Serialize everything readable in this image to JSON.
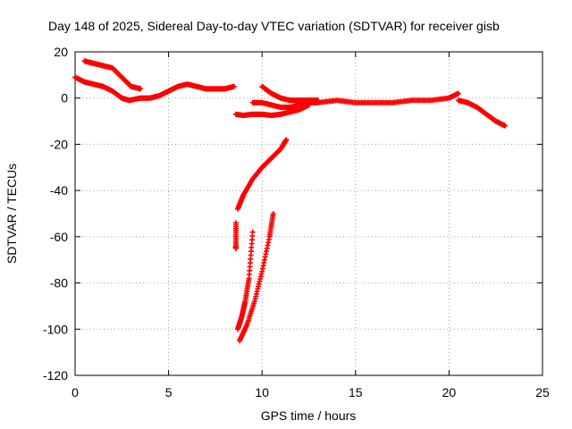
{
  "chart_data": {
    "type": "scatter",
    "title": "Day 148 of 2025, Sidereal Day-to-day VTEC variation (SDTVAR) for receiver gisb",
    "xlabel": "GPS time / hours",
    "ylabel": "SDTVAR / TECUs",
    "xlim": [
      0,
      25
    ],
    "ylim": [
      -120,
      20
    ],
    "xticks": [
      0,
      5,
      10,
      15,
      20,
      25
    ],
    "yticks": [
      -120,
      -100,
      -80,
      -60,
      -40,
      -20,
      0,
      20
    ],
    "grid": true,
    "marker": "+",
    "color": "#ff0000",
    "series": [
      {
        "segments": [
          {
            "x": [
              0.0,
              0.5,
              1.0,
              1.5,
              2.0,
              2.5,
              2.9
            ],
            "y": [
              9,
              7,
              6,
              5,
              3,
              0,
              -1
            ]
          },
          {
            "x": [
              0.5,
              1.0,
              1.5,
              2.0,
              2.5,
              3.0,
              3.5
            ],
            "y": [
              16,
              15,
              14,
              13,
              9,
              5,
              4
            ]
          },
          {
            "x": [
              2.9,
              3.5,
              4.0,
              4.5,
              5.0,
              5.5,
              6.0,
              6.5,
              7.0,
              7.5,
              8.0,
              8.5
            ],
            "y": [
              -1,
              0,
              0,
              1,
              3,
              5,
              6,
              5,
              4,
              4,
              4,
              5
            ]
          },
          {
            "x": [
              8.6,
              9.0,
              9.5,
              10.0,
              10.5,
              11.0,
              11.5,
              12.0,
              12.5
            ],
            "y": [
              -7,
              -7.5,
              -7,
              -7,
              -7.5,
              -7,
              -6,
              -5,
              -3
            ]
          },
          {
            "x": [
              9.5,
              10.0,
              10.5,
              11.0,
              11.5,
              12.0,
              12.5
            ],
            "y": [
              -2,
              -2,
              -3,
              -4,
              -4,
              -3,
              -2
            ]
          },
          {
            "x": [
              10.0,
              10.5,
              11.0,
              11.5,
              12.0,
              12.5,
              13.0
            ],
            "y": [
              5,
              2,
              0,
              -1,
              -1,
              -1,
              -1
            ]
          },
          {
            "x": [
              12.5,
              13,
              14,
              15,
              16,
              17,
              18,
              19,
              20,
              20.5
            ],
            "y": [
              -2,
              -2,
              -1,
              -2,
              -2,
              -2,
              -1,
              -1,
              0,
              2
            ]
          },
          {
            "x": [
              20.5,
              21,
              21.5,
              22,
              22.5,
              23
            ],
            "y": [
              -1,
              -2,
              -4,
              -7,
              -10,
              -12
            ]
          },
          {
            "x": [
              8.7,
              9.0,
              9.5,
              10.0,
              10.5,
              11.0,
              11.3
            ],
            "y": [
              -48,
              -42,
              -35,
              -30,
              -26,
              -22,
              -18
            ]
          },
          {
            "x": [
              8.7,
              8.9,
              9.1,
              9.3,
              9.5
            ],
            "y": [
              -100,
              -95,
              -88,
              -78,
              -58
            ]
          },
          {
            "x": [
              8.8,
              9.2,
              9.6,
              10.0,
              10.4,
              10.6
            ],
            "y": [
              -105,
              -98,
              -88,
              -75,
              -60,
              -50
            ]
          },
          {
            "x": [
              8.6,
              8.6,
              8.6
            ],
            "y": [
              -54,
              -64,
              -65
            ]
          }
        ]
      }
    ]
  }
}
